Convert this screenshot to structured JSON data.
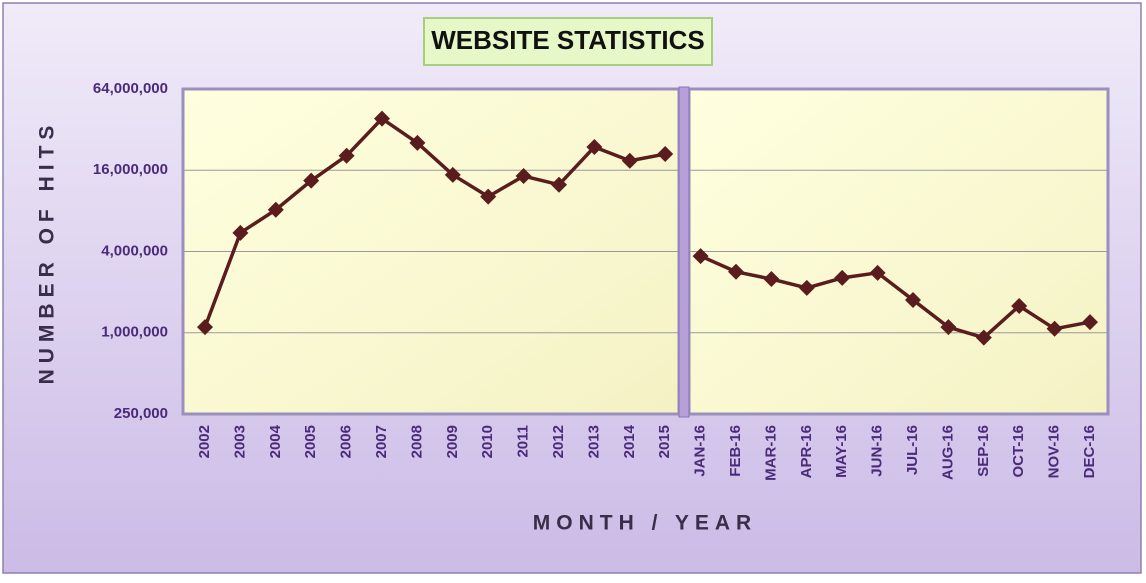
{
  "chart_data": {
    "type": "line",
    "title": "WEBSITE STATISTICS",
    "x_label": "MONTH / YEAR",
    "y_label": "NUMBER OF HITS",
    "categories": [
      "2002",
      "2003",
      "2004",
      "2005",
      "2006",
      "2007",
      "2008",
      "2009",
      "2010",
      "2011",
      "2012",
      "2013",
      "2014",
      "2015",
      "JAN-16",
      "FEB-16",
      "MAR-16",
      "APR-16",
      "MAY-16",
      "JUN-16",
      "JUL-16",
      "AUG-16",
      "SEP-16",
      "OCT-16",
      "NOV-16",
      "DEC-16"
    ],
    "series": [
      {
        "color": "#5a1c1c",
        "values": [
          1100000,
          5500000,
          8150000,
          13400000,
          20500000,
          38600000,
          25500000,
          14800000,
          10200000,
          14500000,
          12500000,
          23800000,
          18800000,
          21100000,
          null,
          null,
          null,
          null,
          null,
          null,
          null,
          null,
          null,
          null,
          null,
          null
        ]
      },
      {
        "color": "#5a1c1c",
        "values": [
          null,
          null,
          null,
          null,
          null,
          null,
          null,
          null,
          null,
          null,
          null,
          null,
          null,
          null,
          3700000,
          2830000,
          2500000,
          2150000,
          2550000,
          2780000,
          1750000,
          1100000,
          920000,
          1580000,
          1070000,
          1200000
        ]
      }
    ],
    "ylog": true,
    "ylim": [
      250000,
      64000000
    ],
    "yticks": [
      {
        "value": 250000,
        "label": "250,000"
      },
      {
        "value": 1000000,
        "label": "1,000,000"
      },
      {
        "value": 4000000,
        "label": "4,000,000"
      },
      {
        "value": 16000000,
        "label": "16,000,000"
      },
      {
        "value": 64000000,
        "label": "64,000,000"
      }
    ],
    "grid": true
  }
}
